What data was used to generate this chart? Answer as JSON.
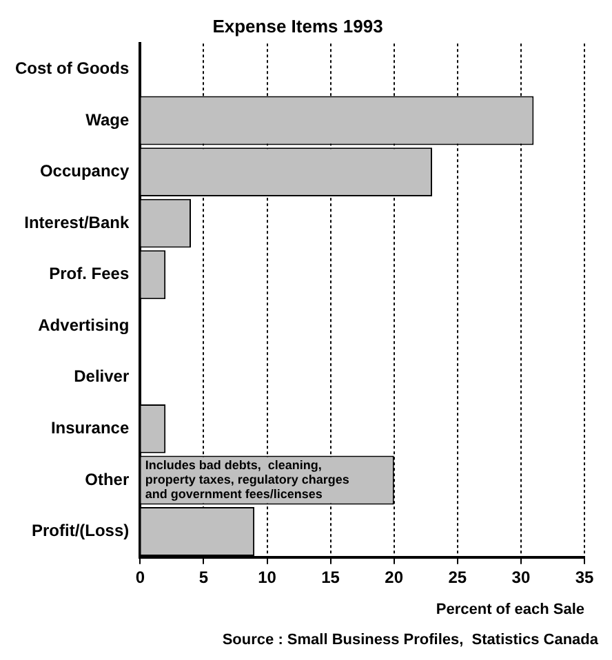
{
  "chart_data": {
    "type": "bar",
    "orientation": "horizontal",
    "title": "Expense Items 1993",
    "xlabel": "Percent of each Sale",
    "categories": [
      "Cost of Goods",
      "Wage",
      "Occupancy",
      "Interest/Bank",
      "Prof. Fees",
      "Advertising",
      "Deliver",
      "Insurance",
      "Other",
      "Profit/(Loss)"
    ],
    "values": [
      0,
      31,
      23,
      4,
      2,
      0,
      0,
      2,
      20,
      9
    ],
    "color": "#c0c0c0",
    "xlim": [
      0,
      35
    ],
    "xticks": [
      0,
      5,
      10,
      15,
      20,
      25,
      30,
      35
    ],
    "grid": "x",
    "legend": false,
    "annotations": [
      {
        "text": "Includes bad debts,  cleaning,\nproperty taxes, regulatory charges\nand government fees/licenses",
        "x": 0.4,
        "y": "Other"
      },
      "Source : Small Business Profiles,  Statistics Canada"
    ]
  }
}
